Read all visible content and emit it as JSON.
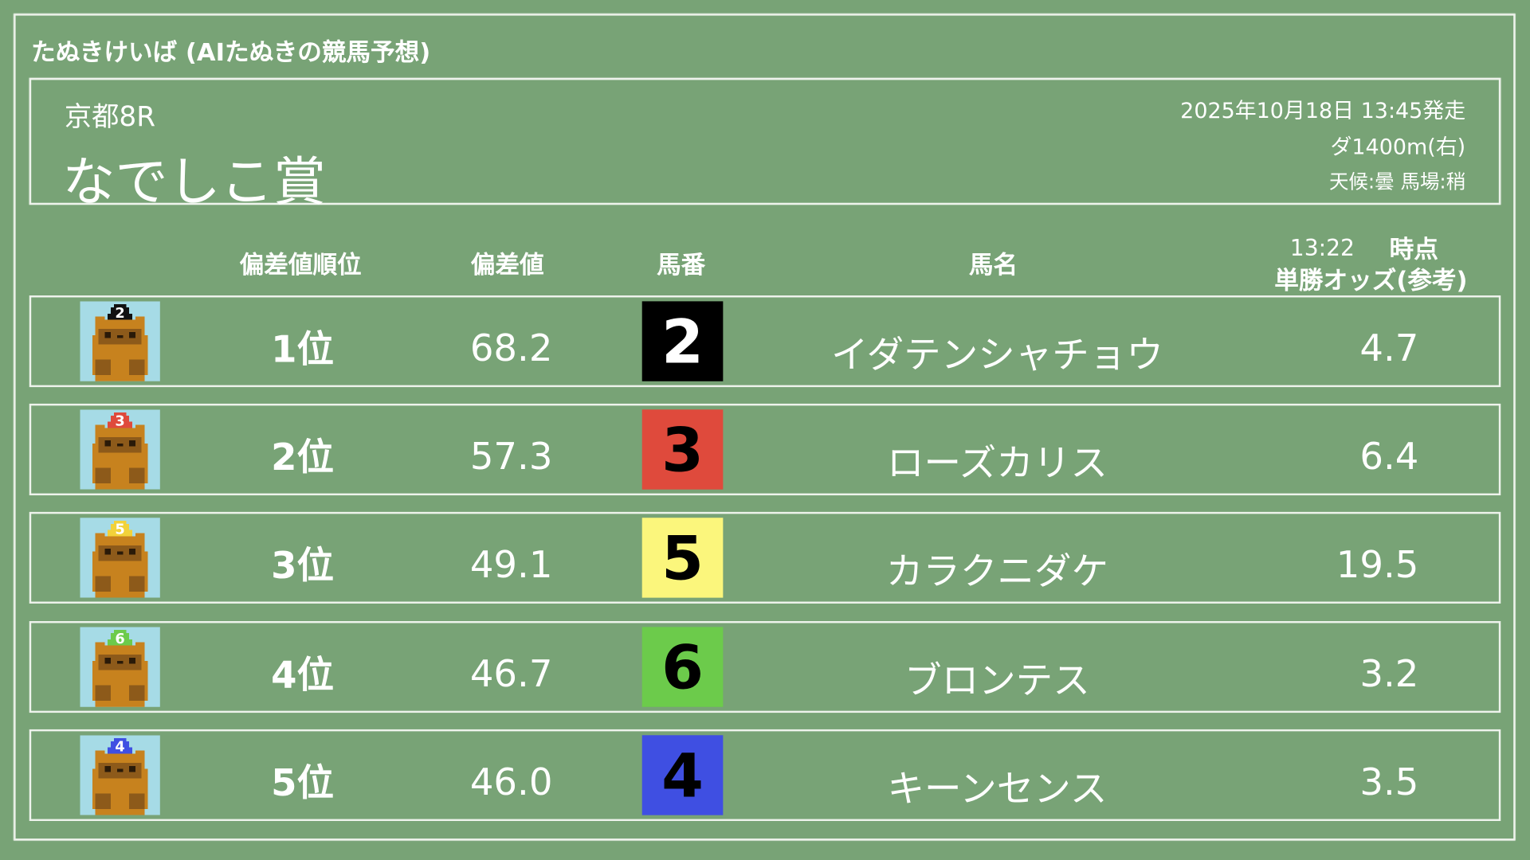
{
  "app_title": "たぬきけいば (AIたぬきの競馬予想)",
  "race": {
    "venue_round": "京都8R",
    "name": "なでしこ賞",
    "datetime": "2025年10月18日 13:45発走",
    "course": "ダ1400m(右)",
    "conditions": "天候:曇 馬場:稍"
  },
  "columns": {
    "rank": "偏差値順位",
    "score": "偏差値",
    "number": "馬番",
    "horse_name": "馬名",
    "odds_time": "13:22",
    "odds_time_suffix": "時点",
    "odds": "単勝オッズ(参考)"
  },
  "rows": [
    {
      "rank": "1位",
      "score": "68.2",
      "number": "2",
      "name": "イダテンシャチョウ",
      "odds": "4.7",
      "box_color": "#000000",
      "num_color": "#ffffff",
      "cap_color": "#111111",
      "icon": "tanuki-icon"
    },
    {
      "rank": "2位",
      "score": "57.3",
      "number": "3",
      "name": "ローズカリス",
      "odds": "6.4",
      "box_color": "#df4a3c",
      "num_color": "#000000",
      "cap_color": "#df4a3c",
      "icon": "tanuki-icon"
    },
    {
      "rank": "3位",
      "score": "49.1",
      "number": "5",
      "name": "カラクニダケ",
      "odds": "19.5",
      "box_color": "#fbf67c",
      "num_color": "#000000",
      "cap_color": "#f2d23a",
      "icon": "tanuki-icon"
    },
    {
      "rank": "4位",
      "score": "46.7",
      "number": "6",
      "name": "ブロンテス",
      "odds": "3.2",
      "box_color": "#6ccb4b",
      "num_color": "#000000",
      "cap_color": "#6ccb4b",
      "icon": "tanuki-icon"
    },
    {
      "rank": "5位",
      "score": "46.0",
      "number": "4",
      "name": "キーンセンス",
      "odds": "3.5",
      "box_color": "#3f4fe2",
      "num_color": "#000000",
      "cap_color": "#3f4fe2",
      "icon": "tanuki-icon"
    }
  ],
  "colors": {
    "background": "#78a376",
    "chalk": "#eef3ec"
  }
}
